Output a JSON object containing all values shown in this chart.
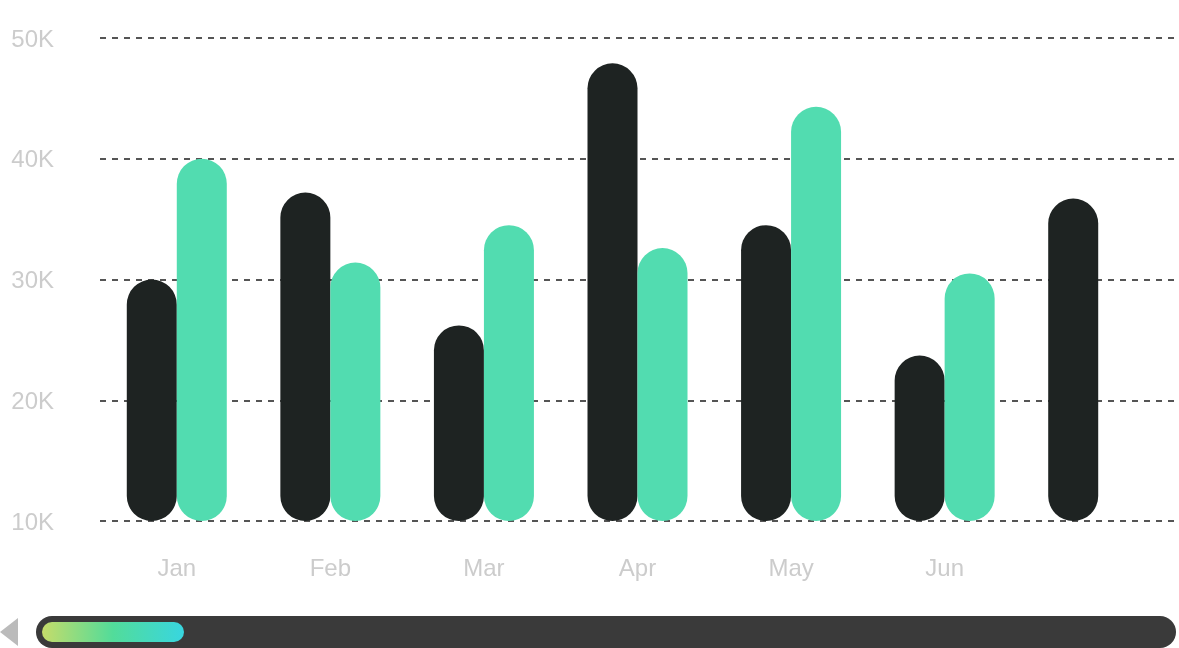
{
  "chart_data": {
    "type": "bar",
    "categories": [
      "Jan",
      "Feb",
      "Mar",
      "Apr",
      "May",
      "Jun",
      null
    ],
    "series": [
      {
        "color": "#1e2322",
        "values": [
          30000,
          37200,
          26200,
          47900,
          34500,
          23700,
          36700
        ]
      },
      {
        "color": "#52dcb0",
        "values": [
          40000,
          31400,
          34500,
          32600,
          44300,
          30500,
          null
        ]
      }
    ],
    "ylim": [
      10000,
      50000
    ],
    "yticks": [
      {
        "value": 10000,
        "label": "10K"
      },
      {
        "value": 20000,
        "label": "20K"
      },
      {
        "value": 30000,
        "label": "30K"
      },
      {
        "value": 40000,
        "label": "40K"
      },
      {
        "value": 50000,
        "label": "50K"
      }
    ],
    "grid": "y"
  }
}
